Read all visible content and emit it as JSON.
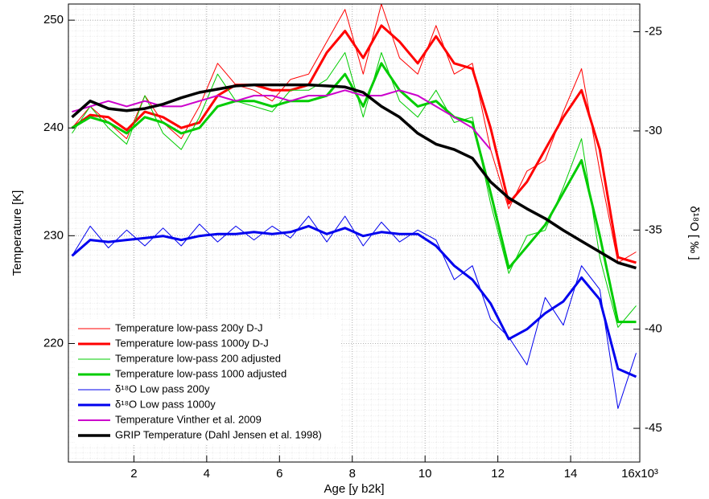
{
  "chart_data": {
    "type": "line",
    "x_label": "Age [y b2k]",
    "y_label": "Temperature [K]",
    "y2_label": "δ¹⁸O [ ‰ ]",
    "x": [
      300,
      800,
      1300,
      1800,
      2300,
      2800,
      3300,
      3800,
      4300,
      4800,
      5300,
      5800,
      6300,
      6800,
      7300,
      7800,
      8300,
      8800,
      9300,
      9800,
      10300,
      10800,
      11300,
      11800,
      12300,
      12800,
      13300,
      13800,
      14300,
      14800,
      15300,
      15800
    ],
    "xlim": [
      200,
      15900
    ],
    "xticks": [
      {
        "value": 2000,
        "label": "2"
      },
      {
        "value": 4000,
        "label": "4"
      },
      {
        "value": 6000,
        "label": "6"
      },
      {
        "value": 8000,
        "label": "8"
      },
      {
        "value": 10000,
        "label": "10"
      },
      {
        "value": 12000,
        "label": "12"
      },
      {
        "value": 14000,
        "label": "14"
      },
      {
        "value": 16000,
        "label": "16x10³"
      }
    ],
    "ylim": [
      209,
      251.5
    ],
    "yticks": [
      220,
      230,
      240,
      250
    ],
    "y2lim": [
      -46.7,
      -23.6
    ],
    "y2ticks": [
      -45,
      -40,
      -35,
      -30,
      -25
    ],
    "grid": true,
    "legend": "lower left",
    "series": [
      {
        "name": "Temperature low-pass 200y D-J",
        "color": "#ff0000",
        "line_width": 1,
        "values": [
          240,
          242,
          240.5,
          239,
          243,
          240.5,
          239,
          242,
          246,
          244,
          243.5,
          242.5,
          244.5,
          245,
          248,
          251,
          245,
          251.5,
          246.5,
          245,
          249.5,
          245,
          246,
          238,
          232.5,
          236,
          237,
          241.5,
          245.5,
          236,
          227.5,
          228.5
        ]
      },
      {
        "name": "Temperature low-pass 1000y D-J",
        "color": "#ff0000",
        "line_width": 3,
        "values": [
          240,
          241.2,
          241,
          239.8,
          241.5,
          241,
          240,
          240.5,
          243,
          244,
          244,
          243.5,
          243.5,
          244,
          247,
          249,
          246.5,
          249.5,
          248,
          246,
          248.5,
          246,
          245.5,
          240,
          233,
          235,
          238,
          241,
          243.5,
          238,
          228,
          227.5
        ]
      },
      {
        "name": "Temperature low-pass 200 adjusted",
        "color": "#00cc00",
        "line_width": 1,
        "values": [
          239.5,
          242,
          240,
          238.5,
          243,
          239.5,
          238,
          241,
          245,
          242.5,
          242,
          241.5,
          243.5,
          243.5,
          244.5,
          247,
          241,
          247,
          242.5,
          241,
          243.5,
          240.5,
          241,
          233,
          226.5,
          230,
          230.5,
          234.5,
          239,
          228,
          221.5,
          223.5
        ]
      },
      {
        "name": "Temperature low-pass 1000 adjusted",
        "color": "#00cc00",
        "line_width": 3,
        "values": [
          240,
          241,
          240.5,
          239.5,
          241,
          240.5,
          239.5,
          240,
          242,
          242.5,
          242.5,
          242,
          242.5,
          242.5,
          243,
          245,
          242,
          246,
          243.5,
          242,
          242.5,
          241,
          240.5,
          234,
          227,
          229,
          231,
          234,
          237,
          230,
          222,
          222
        ]
      },
      {
        "name": "δ¹⁸O Low pass 200y",
        "color": "#0000ee",
        "line_width": 1,
        "axis": "y2",
        "values": [
          -36.3,
          -34.8,
          -35.9,
          -35.0,
          -35.8,
          -34.9,
          -35.8,
          -34.7,
          -35.6,
          -34.8,
          -35.5,
          -34.8,
          -35.4,
          -34.3,
          -35.6,
          -34.3,
          -35.8,
          -34.6,
          -35.6,
          -35.0,
          -35.5,
          -37.5,
          -36.8,
          -39.5,
          -40.4,
          -41.8,
          -38.4,
          -39.8,
          -36.8,
          -38.0,
          -44,
          -41.2
        ]
      },
      {
        "name": "δ¹⁸O Low pass 1000y",
        "color": "#0000ee",
        "line_width": 3,
        "axis": "y2",
        "values": [
          -36.3,
          -35.5,
          -35.6,
          -35.5,
          -35.4,
          -35.3,
          -35.5,
          -35.3,
          -35.2,
          -35.2,
          -35.1,
          -35.2,
          -35.1,
          -34.8,
          -35.2,
          -34.9,
          -35.3,
          -35.1,
          -35.2,
          -35.2,
          -35.8,
          -36.8,
          -37.5,
          -38.7,
          -40.5,
          -40.0,
          -39.2,
          -38.6,
          -37.4,
          -38.5,
          -42.0,
          -42.4
        ]
      },
      {
        "name": "Temperature Vinther et al. 2009",
        "color": "#cc00cc",
        "line_width": 2,
        "values": [
          241.5,
          242,
          242.5,
          242,
          242.5,
          242,
          242,
          242.5,
          243,
          242.5,
          243,
          243,
          242.5,
          243,
          243,
          243.5,
          243,
          243,
          243.5,
          243,
          242,
          241,
          240,
          238,
          null,
          null,
          null,
          null,
          null,
          null,
          null,
          null
        ]
      },
      {
        "name": "GRIP Temperature (Dahl Jensen et al. 1998)",
        "color": "#000000",
        "line_width": 3.5,
        "values": [
          241,
          242.5,
          241.8,
          241.6,
          241.8,
          242.2,
          242.8,
          243.3,
          243.6,
          243.9,
          244,
          244,
          244,
          244,
          243.9,
          243.8,
          243.3,
          242,
          241,
          239.5,
          238.5,
          238,
          237.2,
          235,
          233.5,
          232.5,
          231.6,
          230.5,
          229.5,
          228.5,
          227.5,
          227
        ]
      }
    ]
  }
}
